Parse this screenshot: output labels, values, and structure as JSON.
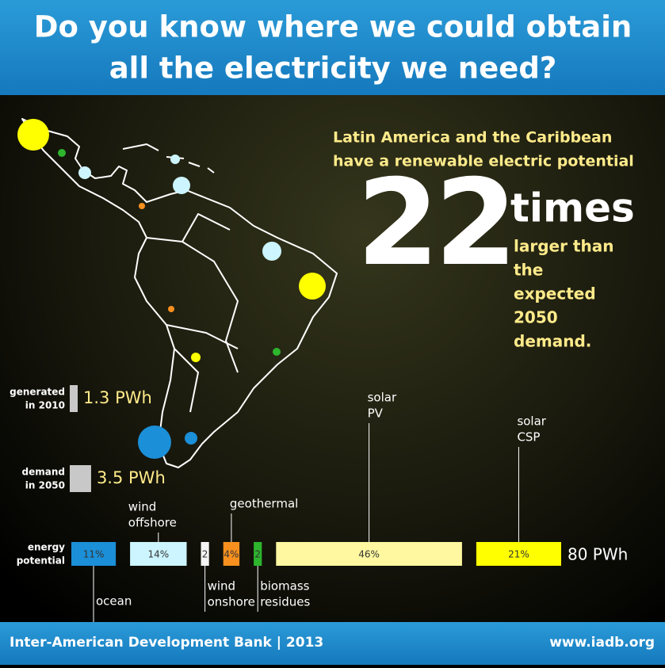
{
  "header": {
    "title_lines": [
      "Do you know where we could obtain",
      "all the electricity we need?"
    ]
  },
  "headline": {
    "intro_lines": [
      "Latin America and the Caribbean",
      "have a renewable electric potential"
    ],
    "number": "22",
    "unit": "times",
    "rest_lines": [
      "larger than",
      "the",
      "expected",
      "2050",
      "demand."
    ]
  },
  "generated": {
    "label_lines": [
      "generated",
      "in 2010"
    ],
    "value": 1.3,
    "value_label": "1.3 PWh"
  },
  "demand": {
    "label_lines": [
      "demand",
      "in 2050"
    ],
    "value": 3.5,
    "value_label": "3.5 PWh"
  },
  "energy_potential": {
    "label_lines": [
      "energy",
      "potential"
    ],
    "total_label": "80 PWh",
    "segments": [
      {
        "name_lines": [
          "ocean"
        ],
        "value": 11,
        "value_label": "11%",
        "color": "#1b8fd8"
      },
      {
        "name_lines": [
          "wind",
          "offshore"
        ],
        "value": 14,
        "value_label": "14%",
        "color": "#ccf5ff"
      },
      {
        "name_lines": [
          "wind",
          "onshore"
        ],
        "value": 2,
        "value_label": "2",
        "color": "#f4f4f4"
      },
      {
        "name_lines": [
          "geothermal"
        ],
        "value": 4,
        "value_label": "4%",
        "color": "#f7901e"
      },
      {
        "name_lines": [
          "biomass",
          "residues"
        ],
        "value": 2,
        "value_label": "2",
        "color": "#2db52d"
      },
      {
        "name_lines": [
          "solar",
          "PV"
        ],
        "value": 46,
        "value_label": "46%",
        "color": "#fff8a0"
      },
      {
        "name_lines": [
          "solar",
          "CSP"
        ],
        "value": 21,
        "value_label": "21%",
        "color": "#ffff00"
      }
    ]
  },
  "footer": {
    "left": "Inter-American Development Bank | 2013",
    "right": "www.iadb.org"
  }
}
